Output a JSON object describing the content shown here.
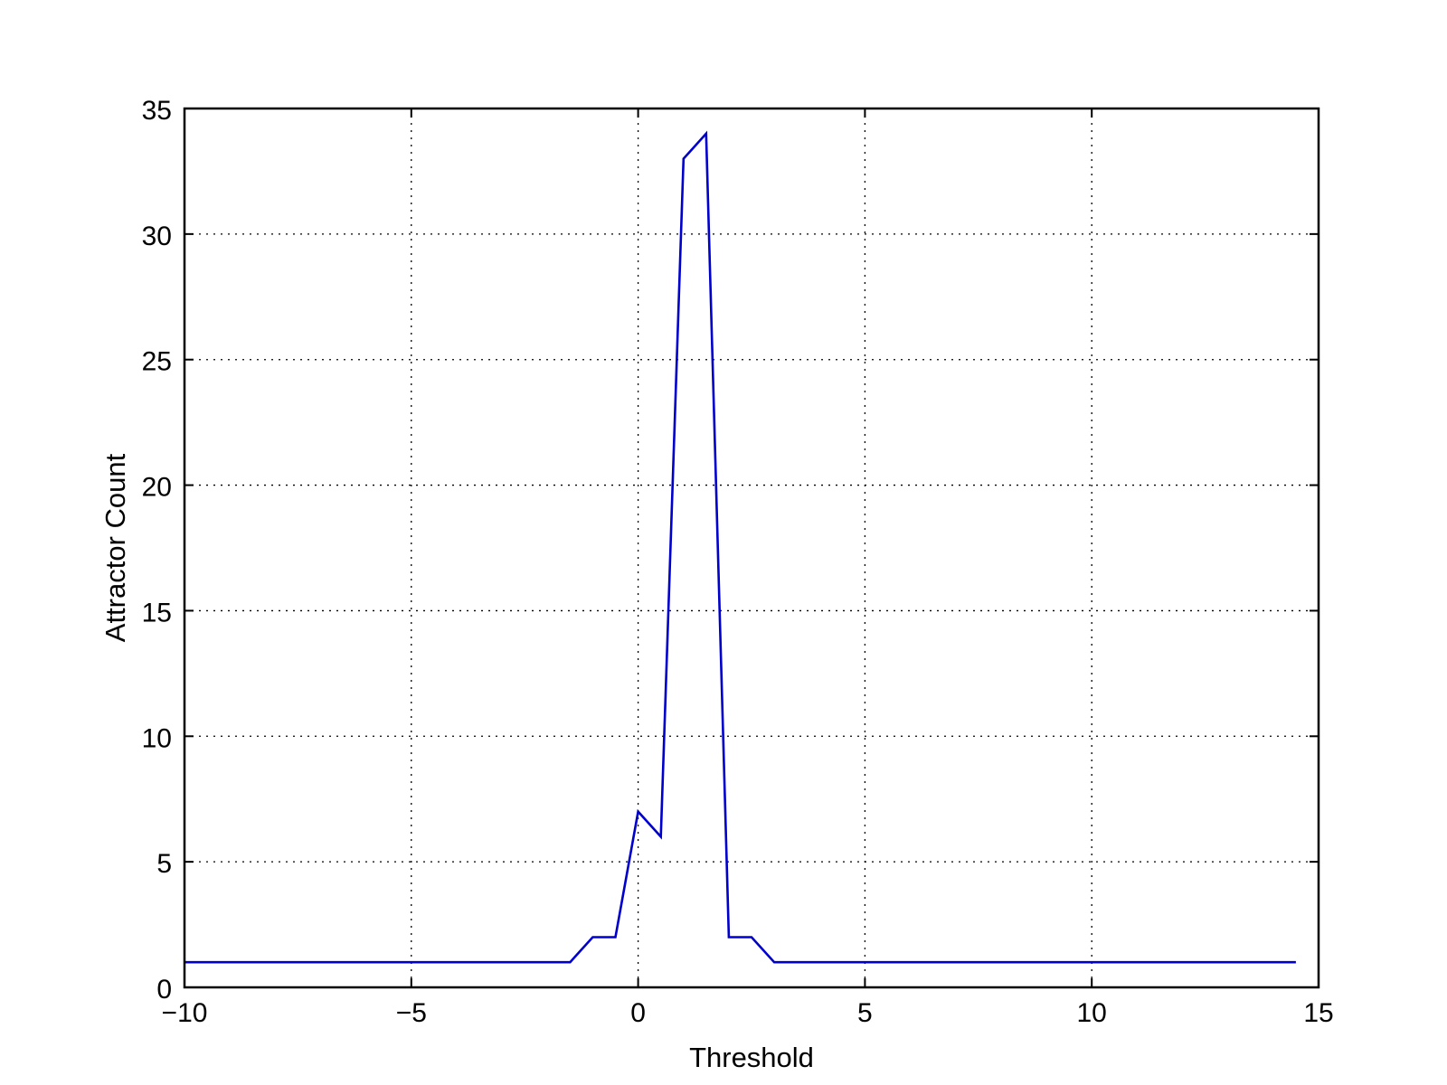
{
  "chart_data": {
    "type": "line",
    "title": "",
    "xlabel": "Threshold",
    "ylabel": "Attractor Count",
    "xlim": [
      -10,
      15
    ],
    "ylim": [
      0,
      35
    ],
    "xticks": [
      -10,
      -5,
      0,
      5,
      10,
      15
    ],
    "yticks": [
      0,
      5,
      10,
      15,
      20,
      25,
      30,
      35
    ],
    "xtick_labels": [
      "−10",
      "−5",
      "0",
      "5",
      "10",
      "15"
    ],
    "ytick_labels": [
      "0",
      "5",
      "10",
      "15",
      "20",
      "25",
      "30",
      "35"
    ],
    "grid": true,
    "legend": "none",
    "series": [
      {
        "color": "#0000cc",
        "x": [
          -10,
          -9.5,
          -9,
          -8.5,
          -8,
          -7.5,
          -7,
          -6.5,
          -6,
          -5.5,
          -5,
          -4.5,
          -4,
          -3.5,
          -3,
          -2.5,
          -2,
          -1.5,
          -1,
          -0.5,
          0,
          0.5,
          1,
          1.5,
          2,
          2.5,
          3,
          3.5,
          4,
          4.5,
          5,
          5.5,
          6,
          6.5,
          7,
          7.5,
          8,
          8.5,
          9,
          9.5,
          10,
          10.5,
          11,
          11.5,
          12,
          12.5,
          13,
          13.5,
          14,
          14.5
        ],
        "values": [
          1,
          1,
          1,
          1,
          1,
          1,
          1,
          1,
          1,
          1,
          1,
          1,
          1,
          1,
          1,
          1,
          1,
          1,
          2,
          2,
          7,
          6,
          33,
          34,
          2,
          2,
          1,
          1,
          1,
          1,
          1,
          1,
          1,
          1,
          1,
          1,
          1,
          1,
          1,
          1,
          1,
          1,
          1,
          1,
          1,
          1,
          1,
          1,
          1,
          1
        ]
      }
    ]
  }
}
